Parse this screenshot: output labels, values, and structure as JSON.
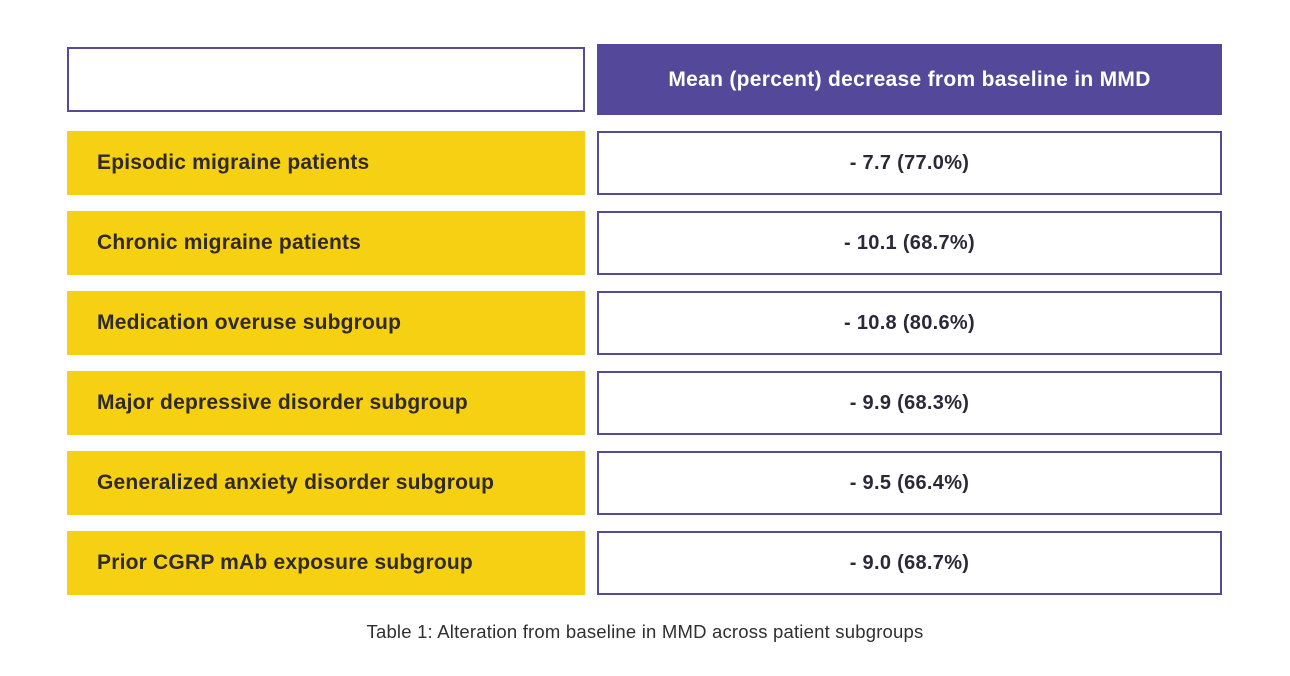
{
  "table": {
    "header": {
      "corner_label": "",
      "value_column_label": "Mean (percent) decrease from baseline in MMD"
    },
    "rows": [
      {
        "label": "Episodic migraine patients",
        "value": "- 7.7 (77.0%)"
      },
      {
        "label": "Chronic migraine patients",
        "value": "- 10.1 (68.7%)"
      },
      {
        "label": "Medication overuse subgroup",
        "value": "- 10.8 (80.6%)"
      },
      {
        "label": "Major depressive disorder subgroup",
        "value": "- 9.9 (68.3%)"
      },
      {
        "label": "Generalized anxiety disorder subgroup",
        "value": "- 9.5 (66.4%)"
      },
      {
        "label": "Prior CGRP mAb exposure subgroup",
        "value": "- 9.0 (68.7%)"
      }
    ],
    "caption": "Table 1: Alteration from baseline in MMD across patient subgroups"
  },
  "colors": {
    "header_purple": "#54489a",
    "border_purple": "#564a9b",
    "row_yellow": "#f5d013",
    "header_text": "#ffffff",
    "label_text": "#2e2a24",
    "value_text": "#2b2838",
    "caption_text": "#2f2f2f",
    "page_background": "#ffffff"
  },
  "chart_data": {
    "type": "table",
    "title": "Table 1: Alteration from baseline in MMD across patient subgroups",
    "columns": [
      "",
      "Mean (percent) decrease from baseline in MMD"
    ],
    "rows": [
      [
        "Episodic migraine patients",
        "- 7.7 (77.0%)"
      ],
      [
        "Chronic migraine patients",
        "- 10.1 (68.7%)"
      ],
      [
        "Medication overuse subgroup",
        "- 10.8 (80.6%)"
      ],
      [
        "Major depressive disorder subgroup",
        "- 9.9 (68.3%)"
      ],
      [
        "Generalized anxiety disorder subgroup",
        "- 9.5 (66.4%)"
      ],
      [
        "Prior CGRP mAb exposure subgroup",
        "- 9.0 (68.7%)"
      ]
    ],
    "numeric_values": {
      "mean_decrease_mmd": [
        -7.7,
        -10.1,
        -10.8,
        -9.9,
        -9.5,
        -9.0
      ],
      "percent_decrease": [
        77.0,
        68.7,
        80.6,
        68.3,
        66.4,
        68.7
      ]
    },
    "layout_hints": {
      "label_column_style": "yellow filled, left-aligned, bold",
      "value_column_style": "white with purple border, centered",
      "header_style": "purple filled, white centered text",
      "grid": "off"
    }
  }
}
